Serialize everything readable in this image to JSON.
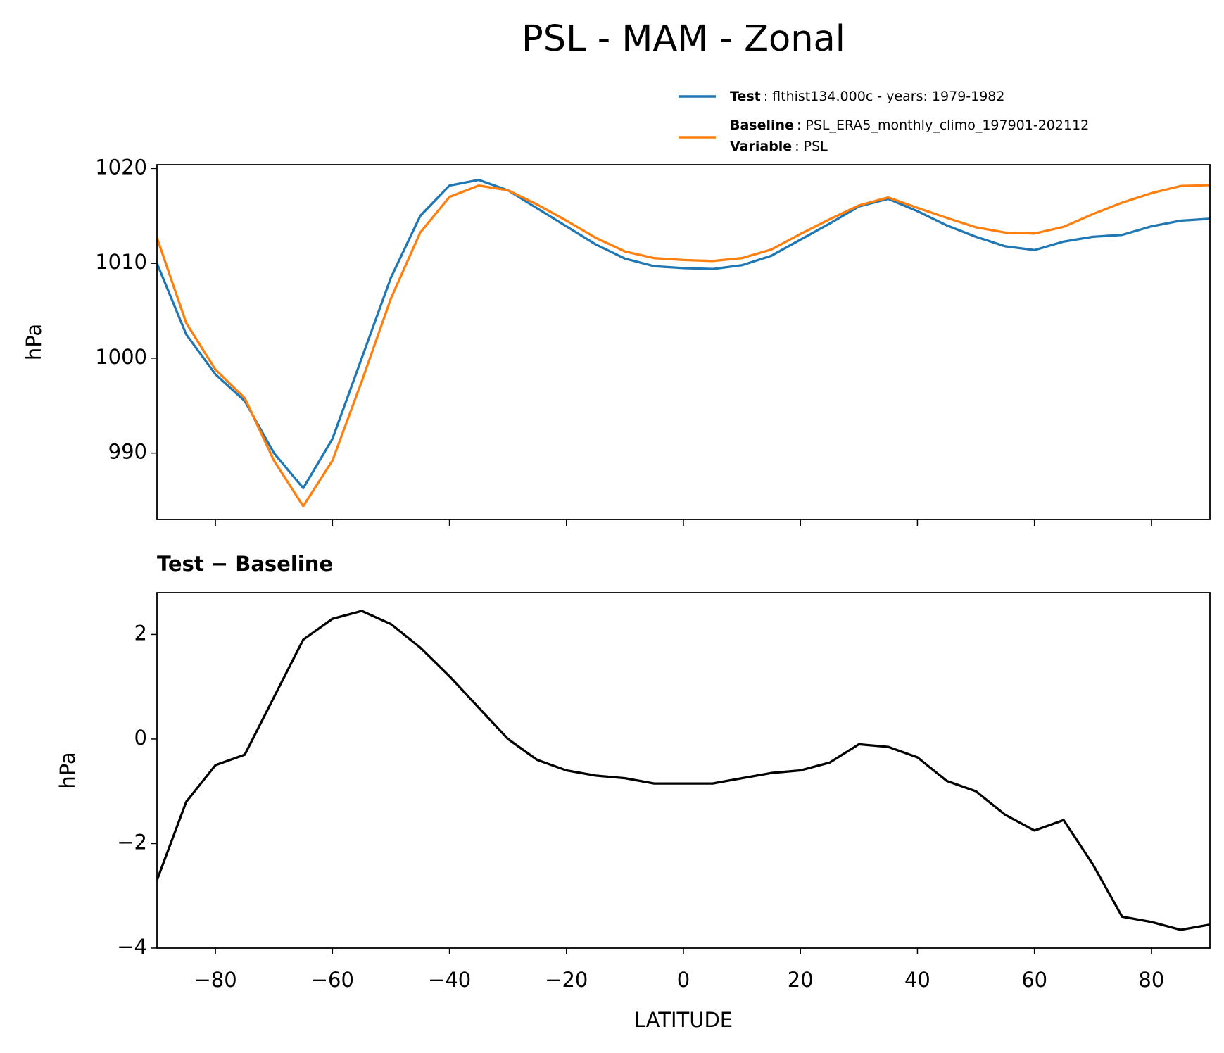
{
  "title": "PSL - MAM - Zonal",
  "chart_data": [
    {
      "type": "line",
      "ylabel": "hPa",
      "x": [
        -90,
        -85,
        -80,
        -75,
        -70,
        -65,
        -60,
        -55,
        -50,
        -45,
        -40,
        -35,
        -30,
        -25,
        -20,
        -15,
        -10,
        -5,
        0,
        5,
        10,
        15,
        20,
        25,
        30,
        35,
        40,
        45,
        50,
        55,
        60,
        65,
        70,
        75,
        80,
        85,
        90
      ],
      "series": [
        {
          "name": "Test",
          "description": ": flthist134.000c - years: 1979-1982",
          "color": "#1f77b4",
          "values": [
            1010.0,
            1002.5,
            998.3,
            995.5,
            990.0,
            986.3,
            991.5,
            1000.0,
            1008.5,
            1015.0,
            1018.2,
            1018.8,
            1017.7,
            1015.8,
            1013.9,
            1012.0,
            1010.5,
            1009.7,
            1009.5,
            1009.4,
            1009.8,
            1010.8,
            1012.5,
            1014.2,
            1016.0,
            1016.8,
            1015.5,
            1014.0,
            1012.8,
            1011.8,
            1011.4,
            1012.3,
            1012.8,
            1013.0,
            1013.9,
            1014.5,
            1014.7
          ]
        },
        {
          "name": "Baseline",
          "description": ": PSL_ERA5_monthly_climo_197901-202112",
          "color": "#ff7f0e",
          "values": [
            1012.7,
            1003.7,
            998.8,
            995.8,
            989.2,
            984.4,
            989.2,
            997.55,
            1006.3,
            1013.25,
            1017.0,
            1018.2,
            1017.7,
            1016.2,
            1014.5,
            1012.7,
            1011.25,
            1010.55,
            1010.35,
            1010.25,
            1010.55,
            1011.45,
            1013.1,
            1014.65,
            1016.1,
            1016.95,
            1015.85,
            1014.8,
            1013.8,
            1013.25,
            1013.15,
            1013.85,
            1015.2,
            1016.4,
            1017.4,
            1018.15,
            1018.25
          ]
        }
      ],
      "legend_extra": {
        "name": "Variable",
        "description": ": PSL"
      },
      "xlim": [
        -90,
        90
      ],
      "xticks": [
        -80,
        -60,
        -40,
        -20,
        0,
        20,
        40,
        60,
        80
      ],
      "ylim": [
        983,
        1020.4
      ],
      "yticks": [
        990,
        1000,
        1010,
        1020
      ]
    },
    {
      "type": "line",
      "title": "Test − Baseline",
      "ylabel": "hPa",
      "xlabel": "LATITUDE",
      "color": "#000000",
      "x": [
        -90,
        -85,
        -80,
        -75,
        -70,
        -65,
        -60,
        -55,
        -50,
        -45,
        -40,
        -35,
        -30,
        -25,
        -20,
        -15,
        -10,
        -5,
        0,
        5,
        10,
        15,
        20,
        25,
        30,
        35,
        40,
        45,
        50,
        55,
        60,
        65,
        70,
        75,
        80,
        85,
        90
      ],
      "values": [
        -2.7,
        -1.2,
        -0.5,
        -0.3,
        0.8,
        1.9,
        2.3,
        2.45,
        2.2,
        1.75,
        1.2,
        0.6,
        0.0,
        -0.4,
        -0.6,
        -0.7,
        -0.75,
        -0.85,
        -0.85,
        -0.85,
        -0.75,
        -0.65,
        -0.6,
        -0.45,
        -0.1,
        -0.15,
        -0.35,
        -0.8,
        -1.0,
        -1.45,
        -1.75,
        -1.55,
        -2.4,
        -3.4,
        -3.5,
        -3.65,
        -3.55
      ],
      "xlim": [
        -90,
        90
      ],
      "xticks": [
        {
          "value": -80,
          "label": "−80"
        },
        {
          "value": -60,
          "label": "−60"
        },
        {
          "value": -40,
          "label": "−40"
        },
        {
          "value": -20,
          "label": "−20"
        },
        0,
        20,
        40,
        60,
        80
      ],
      "ylim": [
        -4,
        2.8
      ],
      "yticks": [
        {
          "value": -4,
          "label": "−4"
        },
        {
          "value": -2,
          "label": "−2"
        },
        0,
        2
      ]
    }
  ]
}
